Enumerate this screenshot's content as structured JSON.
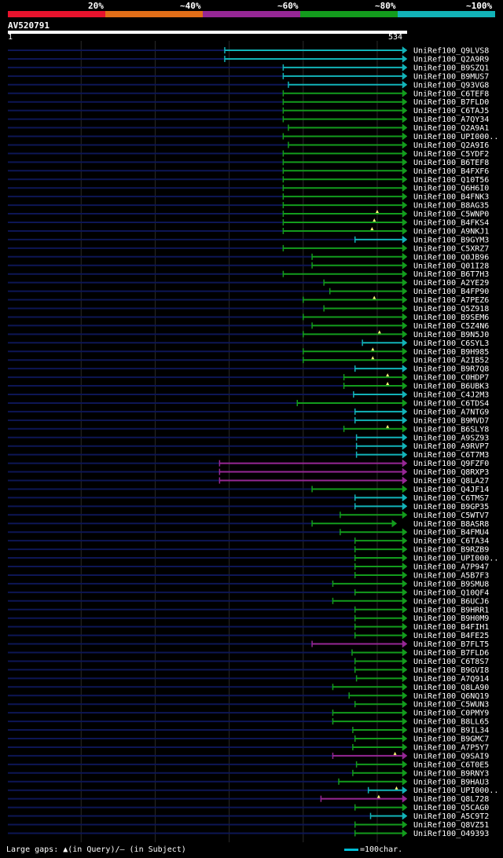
{
  "legend": {
    "labels": [
      "20%",
      "~40%",
      "~60%",
      "~80%",
      "~100%"
    ],
    "colors": [
      "#e8132d",
      "#e26e18",
      "#962795",
      "#139c1d",
      "#12b3b8"
    ]
  },
  "query": {
    "id": "AV520791",
    "start_label": "1",
    "end_label": "534"
  },
  "footer": {
    "gaps_text": "Large gaps: ▲(in Query)/— (in Subject)",
    "scale_text": "=100char."
  },
  "colors": {
    "background": "#000000",
    "unaligned": "#0d1655",
    "grid": "#2a2a2a",
    "cyan": "#12b3b8",
    "green": "#139c1d",
    "magenta": "#962795",
    "gap_marker": "#fffb7a"
  },
  "chart_data": {
    "type": "alignment-overview",
    "query_length": 534,
    "x_range": [
      1,
      534
    ],
    "hits": [
      {
        "id": "UniRef100_Q9LVS8",
        "start": 294,
        "end": 534,
        "color": "cyan"
      },
      {
        "id": "UniRef100_Q2A9R9",
        "start": 294,
        "end": 534,
        "color": "cyan"
      },
      {
        "id": "UniRef100_B9SZQ1",
        "start": 373,
        "end": 534,
        "color": "cyan"
      },
      {
        "id": "UniRef100_B9MUS7",
        "start": 373,
        "end": 534,
        "color": "cyan"
      },
      {
        "id": "UniRef100_Q93VG8",
        "start": 380,
        "end": 534,
        "color": "cyan"
      },
      {
        "id": "UniRef100_C6TEF8",
        "start": 373,
        "end": 534,
        "color": "green"
      },
      {
        "id": "UniRef100_B7FLD0",
        "start": 373,
        "end": 534,
        "color": "green"
      },
      {
        "id": "UniRef100_C6TAJ5",
        "start": 373,
        "end": 534,
        "color": "green"
      },
      {
        "id": "UniRef100_A7QY34",
        "start": 373,
        "end": 534,
        "color": "green"
      },
      {
        "id": "UniRef100_Q2A9A1",
        "start": 380,
        "end": 534,
        "color": "green"
      },
      {
        "id": "UniRef100_UPI000..",
        "start": 373,
        "end": 534,
        "color": "green"
      },
      {
        "id": "UniRef100_Q2A9I6",
        "start": 380,
        "end": 534,
        "color": "green"
      },
      {
        "id": "UniRef100_C5YDF2",
        "start": 373,
        "end": 534,
        "color": "green"
      },
      {
        "id": "UniRef100_B6TEF8",
        "start": 373,
        "end": 534,
        "color": "green"
      },
      {
        "id": "UniRef100_B4FXF6",
        "start": 373,
        "end": 534,
        "color": "green"
      },
      {
        "id": "UniRef100_Q10T56",
        "start": 373,
        "end": 534,
        "color": "green"
      },
      {
        "id": "UniRef100_Q6H6I0",
        "start": 373,
        "end": 534,
        "color": "green"
      },
      {
        "id": "UniRef100_B4FNK3",
        "start": 373,
        "end": 534,
        "color": "green"
      },
      {
        "id": "UniRef100_B8AG35",
        "start": 373,
        "end": 534,
        "color": "green"
      },
      {
        "id": "UniRef100_C5WNP0",
        "start": 373,
        "end": 534,
        "color": "green",
        "gap_at": 500
      },
      {
        "id": "UniRef100_B4FKS4",
        "start": 373,
        "end": 534,
        "color": "green",
        "gap_at": 496
      },
      {
        "id": "UniRef100_A9NKJ1",
        "start": 373,
        "end": 534,
        "color": "green",
        "gap_at": 493
      },
      {
        "id": "UniRef100_B9GYM3",
        "start": 470,
        "end": 534,
        "color": "cyan"
      },
      {
        "id": "UniRef100_C5XRZ7",
        "start": 373,
        "end": 534,
        "color": "green"
      },
      {
        "id": "UniRef100_Q0JB96",
        "start": 412,
        "end": 534,
        "color": "green"
      },
      {
        "id": "UniRef100_Q01I28",
        "start": 412,
        "end": 534,
        "color": "green"
      },
      {
        "id": "UniRef100_B6T7H3",
        "start": 373,
        "end": 534,
        "color": "green"
      },
      {
        "id": "UniRef100_A2YE29",
        "start": 428,
        "end": 534,
        "color": "green"
      },
      {
        "id": "UniRef100_B4FP90",
        "start": 436,
        "end": 534,
        "color": "green"
      },
      {
        "id": "UniRef100_A7PEZ6",
        "start": 400,
        "end": 534,
        "color": "green",
        "gap_at": 496
      },
      {
        "id": "UniRef100_Q5Z918",
        "start": 428,
        "end": 534,
        "color": "green"
      },
      {
        "id": "UniRef100_B9SEM6",
        "start": 400,
        "end": 534,
        "color": "green"
      },
      {
        "id": "UniRef100_C5Z4N6",
        "start": 412,
        "end": 534,
        "color": "green"
      },
      {
        "id": "UniRef100_B9N5J0",
        "start": 400,
        "end": 534,
        "color": "green",
        "gap_at": 503
      },
      {
        "id": "UniRef100_C6SYL3",
        "start": 480,
        "end": 534,
        "color": "cyan"
      },
      {
        "id": "UniRef100_B9H985",
        "start": 400,
        "end": 534,
        "color": "green",
        "gap_at": 494
      },
      {
        "id": "UniRef100_A2IB52",
        "start": 400,
        "end": 534,
        "color": "green",
        "gap_at": 494
      },
      {
        "id": "UniRef100_B9R7Q8",
        "start": 470,
        "end": 534,
        "color": "cyan"
      },
      {
        "id": "UniRef100_C0HDP7",
        "start": 455,
        "end": 534,
        "color": "green",
        "gap_at": 514
      },
      {
        "id": "UniRef100_B6UBK3",
        "start": 455,
        "end": 534,
        "color": "green",
        "gap_at": 514
      },
      {
        "id": "UniRef100_C4J2M3",
        "start": 468,
        "end": 534,
        "color": "cyan"
      },
      {
        "id": "UniRef100_C6TDS4",
        "start": 392,
        "end": 534,
        "color": "green"
      },
      {
        "id": "UniRef100_A7NTG9",
        "start": 470,
        "end": 534,
        "color": "cyan"
      },
      {
        "id": "UniRef100_B9MVD7",
        "start": 470,
        "end": 534,
        "color": "cyan"
      },
      {
        "id": "UniRef100_B6SLY8",
        "start": 455,
        "end": 534,
        "color": "green",
        "gap_at": 514
      },
      {
        "id": "UniRef100_A9SZ93",
        "start": 472,
        "end": 534,
        "color": "cyan"
      },
      {
        "id": "UniRef100_A9RVP7",
        "start": 472,
        "end": 534,
        "color": "cyan"
      },
      {
        "id": "UniRef100_C6T7M3",
        "start": 472,
        "end": 534,
        "color": "cyan"
      },
      {
        "id": "UniRef100_Q9FZF0",
        "start": 287,
        "end": 534,
        "color": "magenta"
      },
      {
        "id": "UniRef100_Q8RXP3",
        "start": 287,
        "end": 534,
        "color": "magenta"
      },
      {
        "id": "UniRef100_Q8LA27",
        "start": 287,
        "end": 534,
        "color": "magenta"
      },
      {
        "id": "UniRef100_Q4JF14",
        "start": 412,
        "end": 534,
        "color": "green"
      },
      {
        "id": "UniRef100_C6TMS7",
        "start": 470,
        "end": 534,
        "color": "cyan"
      },
      {
        "id": "UniRef100_B9GP35",
        "start": 470,
        "end": 534,
        "color": "cyan"
      },
      {
        "id": "UniRef100_C5WTV7",
        "start": 450,
        "end": 534,
        "color": "green"
      },
      {
        "id": "UniRef100_B8ASR8",
        "start": 412,
        "end": 520,
        "color": "green"
      },
      {
        "id": "UniRef100_B4FMU4",
        "start": 450,
        "end": 534,
        "color": "green"
      },
      {
        "id": "UniRef100_C6TA34",
        "start": 470,
        "end": 534,
        "color": "green"
      },
      {
        "id": "UniRef100_B9RZB9",
        "start": 470,
        "end": 534,
        "color": "green"
      },
      {
        "id": "UniRef100_UPI000..",
        "start": 470,
        "end": 534,
        "color": "green"
      },
      {
        "id": "UniRef100_A7P947",
        "start": 470,
        "end": 534,
        "color": "green"
      },
      {
        "id": "UniRef100_A5B7F3",
        "start": 470,
        "end": 534,
        "color": "green"
      },
      {
        "id": "UniRef100_B9SMU8",
        "start": 440,
        "end": 534,
        "color": "green"
      },
      {
        "id": "UniRef100_Q10QF4",
        "start": 470,
        "end": 534,
        "color": "green"
      },
      {
        "id": "UniRef100_B6UCJ6",
        "start": 440,
        "end": 534,
        "color": "green"
      },
      {
        "id": "UniRef100_B9HRR1",
        "start": 470,
        "end": 534,
        "color": "green"
      },
      {
        "id": "UniRef100_B9H0M9",
        "start": 470,
        "end": 534,
        "color": "green"
      },
      {
        "id": "UniRef100_B4FIH1",
        "start": 470,
        "end": 534,
        "color": "green"
      },
      {
        "id": "UniRef100_B4FE25",
        "start": 470,
        "end": 534,
        "color": "green"
      },
      {
        "id": "UniRef100_B7FLT5",
        "start": 412,
        "end": 534,
        "color": "magenta"
      },
      {
        "id": "UniRef100_B7FLD6",
        "start": 466,
        "end": 534,
        "color": "green"
      },
      {
        "id": "UniRef100_C6T8S7",
        "start": 470,
        "end": 534,
        "color": "green"
      },
      {
        "id": "UniRef100_B9GVI8",
        "start": 470,
        "end": 534,
        "color": "green"
      },
      {
        "id": "UniRef100_A7Q914",
        "start": 472,
        "end": 534,
        "color": "green"
      },
      {
        "id": "UniRef100_Q8LA90",
        "start": 440,
        "end": 534,
        "color": "green"
      },
      {
        "id": "UniRef100_Q6NQ19",
        "start": 462,
        "end": 534,
        "color": "green"
      },
      {
        "id": "UniRef100_C5WUN3",
        "start": 470,
        "end": 534,
        "color": "green"
      },
      {
        "id": "UniRef100_C0PMY9",
        "start": 440,
        "end": 534,
        "color": "green"
      },
      {
        "id": "UniRef100_B8LL65",
        "start": 440,
        "end": 534,
        "color": "green"
      },
      {
        "id": "UniRef100_B9IL34",
        "start": 467,
        "end": 534,
        "color": "green"
      },
      {
        "id": "UniRef100_B9GMC7",
        "start": 470,
        "end": 534,
        "color": "green"
      },
      {
        "id": "UniRef100_A7P5Y7",
        "start": 467,
        "end": 534,
        "color": "green"
      },
      {
        "id": "UniRef100_Q9SAI9",
        "start": 440,
        "end": 534,
        "color": "magenta",
        "gap_at": 524
      },
      {
        "id": "UniRef100_C6T0E5",
        "start": 472,
        "end": 534,
        "color": "green"
      },
      {
        "id": "UniRef100_B9RNY3",
        "start": 467,
        "end": 534,
        "color": "green"
      },
      {
        "id": "UniRef100_B9HAU3",
        "start": 448,
        "end": 534,
        "color": "green"
      },
      {
        "id": "UniRef100_UPI000..",
        "start": 488,
        "end": 534,
        "color": "cyan",
        "gap_at": 526
      },
      {
        "id": "UniRef100_Q8L728",
        "start": 424,
        "end": 534,
        "color": "magenta",
        "gap_at": 502
      },
      {
        "id": "UniRef100_Q5CAG0",
        "start": 470,
        "end": 534,
        "color": "green"
      },
      {
        "id": "UniRef100_A5C9T2",
        "start": 491,
        "end": 534,
        "color": "cyan"
      },
      {
        "id": "UniRef100_Q8VZ51",
        "start": 470,
        "end": 534,
        "color": "green"
      },
      {
        "id": "UniRef100_O49393",
        "start": 470,
        "end": 534,
        "color": "green"
      }
    ]
  }
}
